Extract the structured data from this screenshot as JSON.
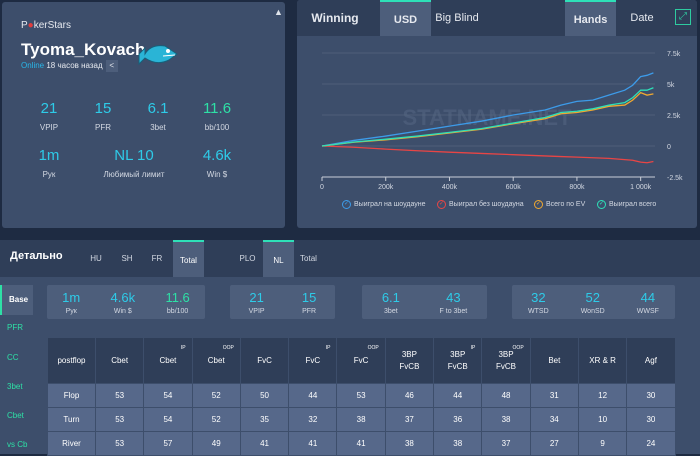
{
  "profile": {
    "site_logo": "PokerStars",
    "name": "Tyoma_Kovach",
    "online_label": "Online",
    "last_seen": "18 часов назад",
    "stats": [
      {
        "value": "21",
        "label": "VPIP"
      },
      {
        "value": "15",
        "label": "PFR"
      },
      {
        "value": "6.1",
        "label": "3bet"
      },
      {
        "value": "11.6",
        "label": "bb/100"
      },
      {
        "value": "1m",
        "label": "Рук"
      },
      {
        "value": "NL 10",
        "label": "Любимый лимит"
      },
      {
        "value": "4.6k",
        "label": "Win $"
      }
    ]
  },
  "chart_panel": {
    "title": "Winning",
    "tabs": [
      "USD",
      "Big Blind"
    ],
    "x_tabs": [
      "Hands",
      "Date"
    ]
  },
  "chart_data": {
    "type": "line",
    "title": "Winning",
    "xlabel": "Hands",
    "ylabel": "USD",
    "xlim": [
      0,
      1045000
    ],
    "ylim": [
      -2500,
      7500
    ],
    "x_ticks": [
      "0",
      "200k",
      "400k",
      "600k",
      "800k",
      "1 000k"
    ],
    "x_tick_values": [
      0,
      200000,
      400000,
      600000,
      800000,
      1000000
    ],
    "y_ticks": [
      "7.5k",
      "5k",
      "2.5k",
      "0",
      "-2.5k"
    ],
    "y_tick_values": [
      7500,
      5000,
      2500,
      0,
      -2500
    ],
    "watermark": "STATNAME.NET",
    "x": [
      0,
      100000,
      200000,
      300000,
      400000,
      500000,
      600000,
      700000,
      750000,
      800000,
      850000,
      900000,
      950000,
      975000,
      1000000,
      1020000,
      1040000
    ],
    "series": [
      {
        "name": "Выиграл на шоудауне",
        "color": "#3d9be9",
        "values": [
          0,
          450,
          800,
          1200,
          1600,
          2000,
          2500,
          2900,
          3300,
          3600,
          3700,
          4100,
          4500,
          4900,
          5600,
          5700,
          5900
        ]
      },
      {
        "name": "Выиграл без шоудауна",
        "color": "#e84545",
        "values": [
          0,
          -100,
          -250,
          -380,
          -500,
          -600,
          -700,
          -800,
          -850,
          -900,
          -950,
          -1000,
          -1100,
          -1150,
          -1300,
          -1350,
          -1250
        ]
      },
      {
        "name": "Всего по EV",
        "color": "#f0a830",
        "values": [
          0,
          300,
          500,
          750,
          1050,
          1350,
          1800,
          2200,
          2600,
          2700,
          2900,
          3200,
          3300,
          3700,
          4300,
          4100,
          4200
        ]
      },
      {
        "name": "Выиграл всего",
        "color": "#2ee0b8",
        "values": [
          0,
          320,
          550,
          800,
          1100,
          1400,
          1850,
          2300,
          2700,
          2800,
          3000,
          3300,
          3500,
          3900,
          4500,
          4500,
          4700
        ]
      }
    ]
  },
  "detail": {
    "title": "Детально",
    "table_tabs": [
      "HU",
      "SH",
      "FR",
      "Total"
    ],
    "game_tabs": [
      "PLO",
      "NL",
      "Total"
    ],
    "side": [
      "Base",
      "PFR",
      "CC",
      "3bet",
      "Cbet",
      "vs Cb"
    ],
    "groups": [
      [
        {
          "value": "1m",
          "label": "Рук"
        },
        {
          "value": "4.6k",
          "label": "Win $"
        },
        {
          "value": "11.6",
          "label": "bb/100"
        }
      ],
      [
        {
          "value": "21",
          "label": "VPIP"
        },
        {
          "value": "15",
          "label": "PFR"
        }
      ],
      [
        {
          "value": "6.1",
          "label": "3bet"
        },
        {
          "value": "43",
          "label": "F to 3bet"
        }
      ],
      [
        {
          "value": "32",
          "label": "WTSD"
        },
        {
          "value": "52",
          "label": "WonSD"
        },
        {
          "value": "44",
          "label": "WWSF"
        }
      ]
    ],
    "columns": [
      {
        "l1": "postflop"
      },
      {
        "l1": "Cbet"
      },
      {
        "l1": "Cbet",
        "sup": "IP"
      },
      {
        "l1": "Cbet",
        "sup": "OOP"
      },
      {
        "l1": "FvC"
      },
      {
        "l1": "FvC",
        "sup": "IP"
      },
      {
        "l1": "FvC",
        "sup": "OOP"
      },
      {
        "l1": "3BP",
        "l2": "FvCB"
      },
      {
        "l1": "3BP",
        "l2": "FvCB",
        "sup": "IP"
      },
      {
        "l1": "3BP",
        "l2": "FvCB",
        "sup": "OOP"
      },
      {
        "l1": "Bet"
      },
      {
        "l1": "XR & R"
      },
      {
        "l1": "Agf"
      }
    ],
    "rows": [
      [
        "Flop",
        "53",
        "54",
        "52",
        "50",
        "44",
        "53",
        "46",
        "44",
        "48",
        "31",
        "12",
        "30"
      ],
      [
        "Turn",
        "53",
        "54",
        "52",
        "35",
        "32",
        "38",
        "37",
        "36",
        "38",
        "34",
        "10",
        "30"
      ],
      [
        "River",
        "53",
        "57",
        "49",
        "41",
        "41",
        "41",
        "38",
        "38",
        "37",
        "27",
        "9",
        "24"
      ]
    ]
  }
}
